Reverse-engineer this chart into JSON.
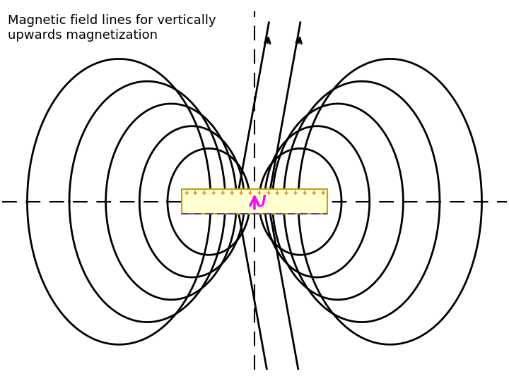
{
  "title": "Magnetic field lines for vertically\nupwards magnetization",
  "title_fontsize": 13,
  "bg_color": "#ffffff",
  "line_color": "#000000",
  "dashed_color": "#000000",
  "box_facecolor": "#ffffd0",
  "box_edgecolor": "#c8a000",
  "plus_color": "#c87000",
  "minus_color": "#4444cc",
  "arrow_color": "#ff00ff",
  "J_color": "#ff00ff",
  "lw": 2.0,
  "xlim": [
    -4.5,
    4.5
  ],
  "ylim": [
    -3.0,
    3.4
  ],
  "mw": 1.3,
  "mh": 0.22
}
